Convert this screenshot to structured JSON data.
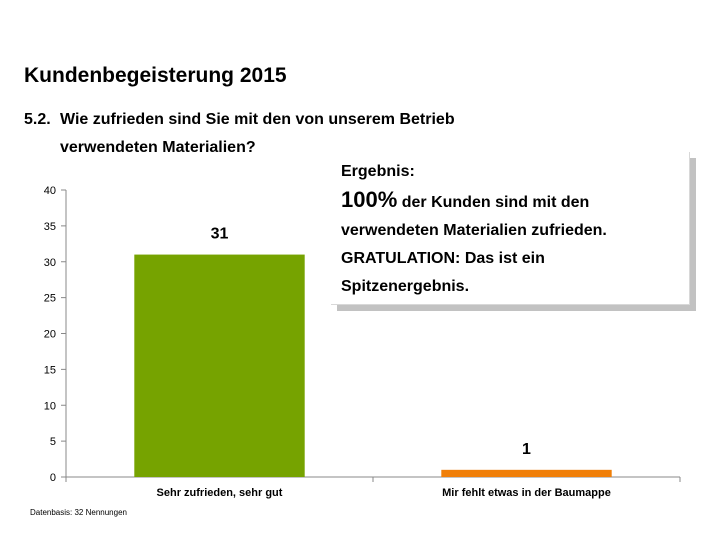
{
  "slide": {
    "title": "Kundenbegeisterung 2015",
    "question_number": "5.2.",
    "question_line1": "Wie zufrieden sind Sie mit den von unserem Betrieb",
    "question_line2": "verwendeten Materialien?"
  },
  "result": {
    "heading": "Ergebnis:",
    "percent": "100%",
    "line1_rest": "der Kunden sind mit den",
    "line2": "verwendeten Materialien zufrieden.",
    "line3": "GRATULATION: Das ist ein",
    "line4": "Spitzenergebnis."
  },
  "footnote": "Datenbasis: 32 Nennungen",
  "chart_data": {
    "type": "bar",
    "title": "",
    "xlabel": "",
    "ylabel": "",
    "categories": [
      "Sehr zufrieden, sehr gut",
      "Mir fehlt etwas in der Baumappe"
    ],
    "values": [
      31,
      1
    ],
    "colors": [
      "#76a300",
      "#f07f09"
    ],
    "data_labels": [
      "31",
      "1"
    ],
    "ylim": [
      0,
      40
    ],
    "yticks": [
      0,
      5,
      10,
      15,
      20,
      25,
      30,
      35,
      40
    ],
    "grid": false,
    "legend": "none",
    "axis_color": "#888888"
  }
}
